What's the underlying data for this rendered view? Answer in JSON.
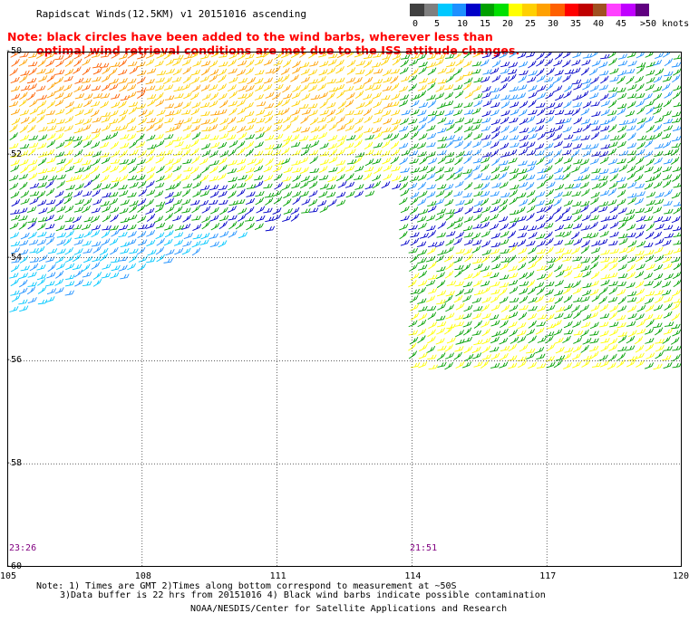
{
  "header": {
    "title": "Rapidscat Winds(12.5KM) v1 20151016 ascending",
    "note_line1": "Note: black circles have been added to the wind barbs, wherever less than",
    "note_line2": "optimal wind retrieval conditions are met due to the ISS attitude changes."
  },
  "color_scale": {
    "colors": [
      "#404040",
      "#7f7f7f",
      "#00c8ff",
      "#1e90ff",
      "#0000c8",
      "#00a000",
      "#00e000",
      "#ffff00",
      "#ffd000",
      "#ffa000",
      "#ff6000",
      "#ff0000",
      "#c00000",
      "#a05020",
      "#ff40ff",
      "#c000ff",
      "#600080"
    ],
    "labels": [
      "0",
      "5",
      "10",
      "15",
      "20",
      "25",
      "30",
      "35",
      "40",
      "45",
      ">50 knots"
    ]
  },
  "map": {
    "lat_labels": [
      "-50",
      "-52",
      "-54",
      "-56",
      "-58",
      "-60"
    ],
    "lon_labels": [
      "105",
      "108",
      "111",
      "114",
      "117",
      "120"
    ],
    "lat_range": [
      -60,
      -50
    ],
    "lon_range": [
      105,
      120
    ],
    "times": [
      "23:26",
      "21:51"
    ],
    "grid": true
  },
  "footer": {
    "notes_line1": "Note: 1) Times are GMT 2)Times along bottom correspond to measurement at ~50S",
    "notes_line2": "3)Data buffer is 22 hrs from 20151016 4) Black wind barbs indicate possible contamination",
    "credit": "NOAA/NESDIS/Center for Satellite Applications and Research"
  }
}
